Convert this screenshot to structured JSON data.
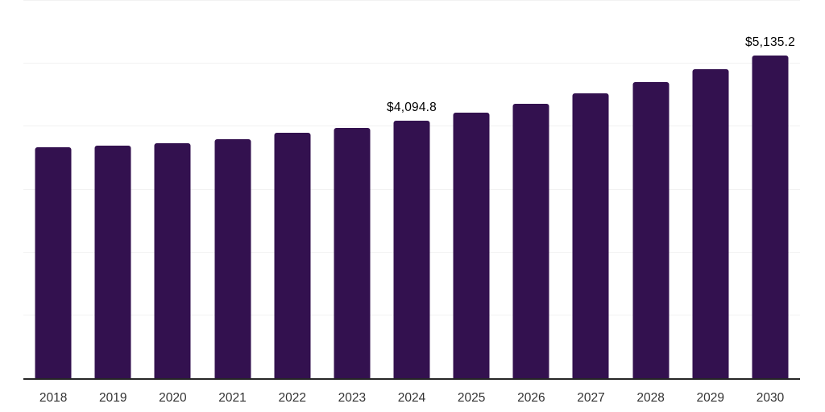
{
  "chart_data": {
    "type": "bar",
    "title": "",
    "xlabel": "",
    "ylabel": "",
    "categories": [
      "2018",
      "2019",
      "2020",
      "2021",
      "2022",
      "2023",
      "2024",
      "2025",
      "2026",
      "2027",
      "2028",
      "2029",
      "2030"
    ],
    "values": [
      3670,
      3695,
      3735,
      3800,
      3900,
      3980,
      4094.8,
      4220,
      4360,
      4530,
      4710,
      4910,
      5135.2
    ],
    "point_labels": [
      "",
      "",
      "",
      "",
      "",
      "",
      "$4,094.8",
      "",
      "",
      "",
      "",
      "",
      "$5,135.2"
    ],
    "ylim": [
      0,
      6000
    ],
    "gridline_step": 1000,
    "grid": "horizontal-only",
    "legend": "none",
    "y_axis_tick_labels_visible": false,
    "colors": {
      "bar": "#33114f",
      "axis_line": "#262626",
      "gridline": "#f2f2f2",
      "x_tick_label": "#333333",
      "data_label": "#000000",
      "background": "#ffffff"
    }
  }
}
